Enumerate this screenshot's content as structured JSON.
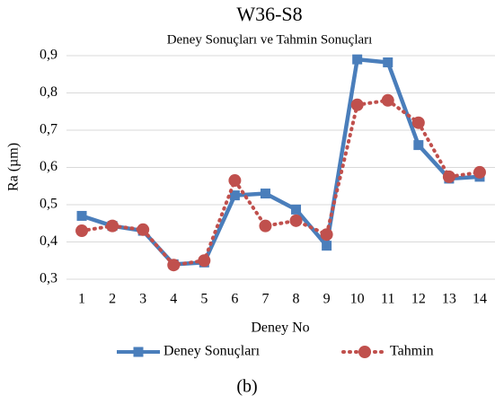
{
  "chart_data": {
    "type": "line",
    "title": "W36-S8",
    "subtitle": "Deney Sonuçları ve Tahmin Sonuçları",
    "x_label": "Deney No",
    "y_label": "Ra (µm)",
    "caption": "(b)",
    "categories": [
      "1",
      "2",
      "3",
      "4",
      "5",
      "6",
      "7",
      "8",
      "9",
      "10",
      "11",
      "12",
      "13",
      "14"
    ],
    "series": [
      {
        "name": "Deney Sonuçları",
        "color": "#4a7ebb",
        "style": "solid",
        "marker": "square",
        "values": [
          0.47,
          0.443,
          0.43,
          0.34,
          0.345,
          0.525,
          0.53,
          0.487,
          0.39,
          0.89,
          0.882,
          0.66,
          0.57,
          0.575
        ]
      },
      {
        "name": "Tahmin",
        "color": "#c0504d",
        "style": "dotted",
        "marker": "circle",
        "values": [
          0.43,
          0.443,
          0.433,
          0.338,
          0.35,
          0.565,
          0.443,
          0.457,
          0.42,
          0.768,
          0.78,
          0.72,
          0.575,
          0.587
        ]
      }
    ],
    "ylim": [
      0.3,
      0.9
    ],
    "yticks": [
      {
        "value": 0.3,
        "label": "0,3"
      },
      {
        "value": 0.4,
        "label": "0,4"
      },
      {
        "value": 0.5,
        "label": "0,5"
      },
      {
        "value": 0.6,
        "label": "0,6"
      },
      {
        "value": 0.7,
        "label": "0,7"
      },
      {
        "value": 0.8,
        "label": "0,8"
      },
      {
        "value": 0.9,
        "label": "0,9"
      }
    ],
    "grid": true,
    "legend": "bottom"
  }
}
